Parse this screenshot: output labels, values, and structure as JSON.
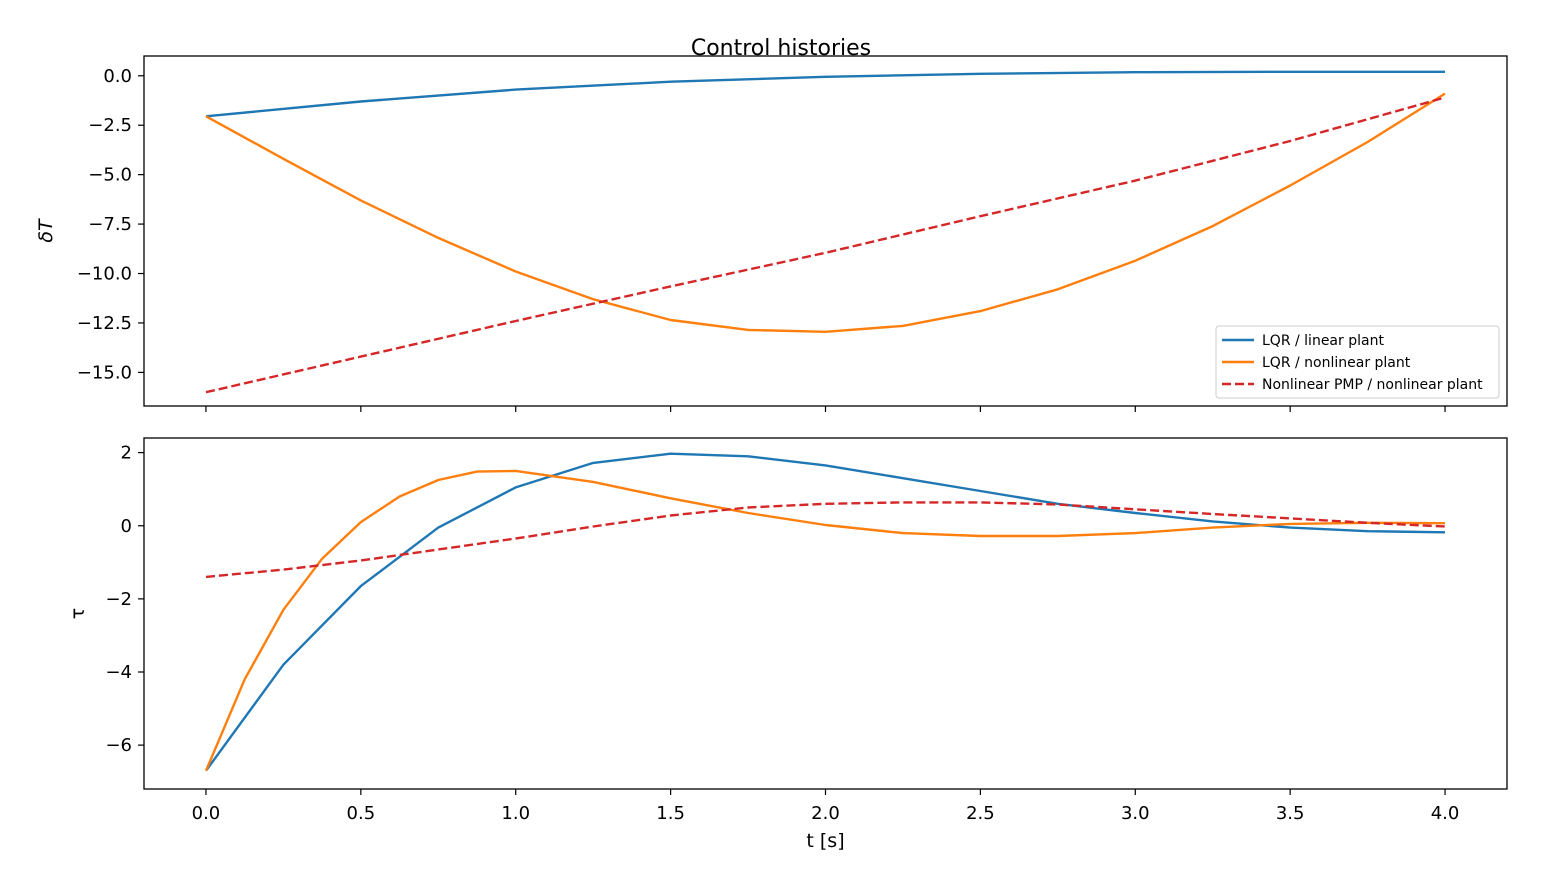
{
  "figure": {
    "title": "Control histories"
  },
  "colors": {
    "lqr_linear": "#1f77b4",
    "lqr_nonlinear": "#ff7f0e",
    "pmp": "#d62728"
  },
  "chart_data": [
    {
      "type": "line",
      "ylabel": "δT",
      "xlabel": "",
      "xlim": [
        -0.2,
        4.2
      ],
      "ylim": [
        -16.7,
        1.0
      ],
      "xticks": [
        0.0,
        0.5,
        1.0,
        1.5,
        2.0,
        2.5,
        3.0,
        3.5,
        4.0
      ],
      "xtick_labels_visible": false,
      "yticks": [
        0.0,
        -2.5,
        -5.0,
        -7.5,
        -10.0,
        -12.5,
        -15.0
      ],
      "ytick_labels": [
        "0.0",
        "−2.5",
        "−5.0",
        "−7.5",
        "−10.0",
        "−12.5",
        "−15.0"
      ],
      "grid": false,
      "legend": {
        "position": "lower-right"
      },
      "series": [
        {
          "name": "LQR / linear plant",
          "color": "#1f77b4",
          "style": "solid",
          "x": [
            0,
            0.5,
            1.0,
            1.5,
            2.0,
            2.5,
            3.0,
            3.5,
            4.0
          ],
          "y": [
            -2.05,
            -1.3,
            -0.7,
            -0.3,
            -0.05,
            0.1,
            0.18,
            0.2,
            0.2
          ]
        },
        {
          "name": "LQR / nonlinear plant",
          "color": "#ff7f0e",
          "style": "solid",
          "x": [
            0,
            0.25,
            0.5,
            0.75,
            1.0,
            1.25,
            1.5,
            1.75,
            2.0,
            2.25,
            2.5,
            2.75,
            3.0,
            3.25,
            3.5,
            3.75,
            4.0
          ],
          "y": [
            -2.05,
            -4.2,
            -6.3,
            -8.2,
            -9.9,
            -11.3,
            -12.35,
            -12.85,
            -12.95,
            -12.65,
            -11.9,
            -10.8,
            -9.35,
            -7.6,
            -5.55,
            -3.35,
            -0.9
          ]
        },
        {
          "name": "Nonlinear PMP / nonlinear plant",
          "color": "#d62728",
          "style": "dashed",
          "x": [
            0,
            0.5,
            1.0,
            1.5,
            2.0,
            2.5,
            3.0,
            3.5,
            4.0
          ],
          "y": [
            -16.0,
            -14.2,
            -12.4,
            -10.65,
            -8.95,
            -7.1,
            -5.3,
            -3.3,
            -1.1
          ]
        }
      ]
    },
    {
      "type": "line",
      "ylabel": "τ",
      "xlabel": "t [s]",
      "xlim": [
        -0.2,
        4.2
      ],
      "ylim": [
        -7.2,
        2.4
      ],
      "xticks": [
        0.0,
        0.5,
        1.0,
        1.5,
        2.0,
        2.5,
        3.0,
        3.5,
        4.0
      ],
      "xtick_labels": [
        "0.0",
        "0.5",
        "1.0",
        "1.5",
        "2.0",
        "2.5",
        "3.0",
        "3.5",
        "4.0"
      ],
      "yticks": [
        2,
        0,
        -2,
        -4,
        -6
      ],
      "ytick_labels": [
        "2",
        "0",
        "−2",
        "−4",
        "−6"
      ],
      "grid": false,
      "series": [
        {
          "name": "LQR / linear plant",
          "color": "#1f77b4",
          "style": "solid",
          "x": [
            0,
            0.25,
            0.5,
            0.75,
            1.0,
            1.25,
            1.5,
            1.75,
            2.0,
            2.25,
            2.5,
            2.75,
            3.0,
            3.25,
            3.5,
            3.75,
            4.0
          ],
          "y": [
            -6.7,
            -3.8,
            -1.65,
            -0.05,
            1.05,
            1.72,
            1.97,
            1.9,
            1.65,
            1.3,
            0.95,
            0.6,
            0.35,
            0.12,
            -0.05,
            -0.15,
            -0.18
          ]
        },
        {
          "name": "LQR / nonlinear plant",
          "color": "#ff7f0e",
          "style": "solid",
          "x": [
            0,
            0.125,
            0.25,
            0.375,
            0.5,
            0.625,
            0.75,
            0.875,
            1.0,
            1.25,
            1.5,
            1.75,
            2.0,
            2.25,
            2.5,
            2.75,
            3.0,
            3.25,
            3.5,
            3.75,
            4.0
          ],
          "y": [
            -6.7,
            -4.2,
            -2.3,
            -0.9,
            0.1,
            0.8,
            1.25,
            1.48,
            1.5,
            1.2,
            0.75,
            0.35,
            0.02,
            -0.2,
            -0.28,
            -0.28,
            -0.2,
            -0.05,
            0.05,
            0.08,
            0.07
          ]
        },
        {
          "name": "Nonlinear PMP / nonlinear plant",
          "color": "#d62728",
          "style": "dashed",
          "x": [
            0,
            0.25,
            0.5,
            0.75,
            1.0,
            1.25,
            1.5,
            1.75,
            2.0,
            2.25,
            2.5,
            2.75,
            3.0,
            3.25,
            3.5,
            3.75,
            4.0
          ],
          "y": [
            -1.4,
            -1.2,
            -0.95,
            -0.65,
            -0.35,
            -0.02,
            0.28,
            0.5,
            0.6,
            0.64,
            0.64,
            0.58,
            0.45,
            0.32,
            0.2,
            0.08,
            -0.02
          ]
        }
      ]
    }
  ]
}
